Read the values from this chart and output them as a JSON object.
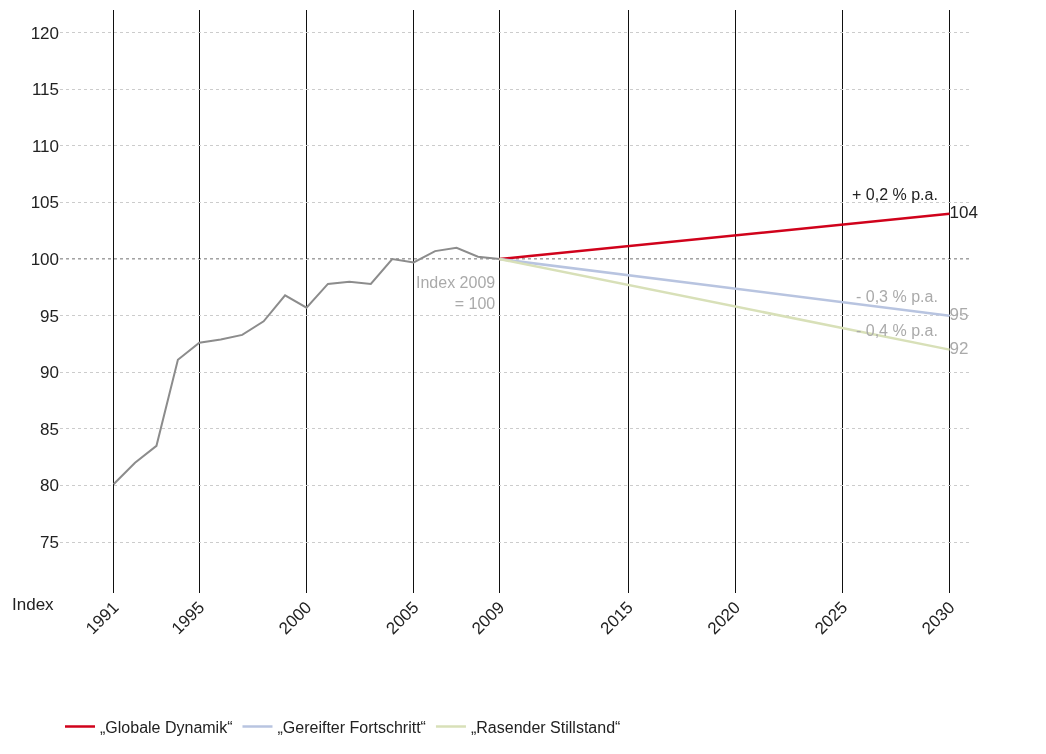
{
  "chart_data": {
    "type": "line",
    "ylabel": "Index",
    "xlim": [
      1988.5,
      2031
    ],
    "xticks": [
      1991,
      1995,
      2000,
      2005,
      2009,
      2015,
      2020,
      2025,
      2030
    ],
    "ylim": [
      70.5,
      122
    ],
    "yticks": [
      75,
      80,
      85,
      90,
      95,
      100,
      105,
      110,
      115,
      120
    ],
    "grid": true,
    "legend": "bottom",
    "marker": "none",
    "series": [
      {
        "color": "#8c8c8c",
        "x": [
          1991,
          1992,
          1993,
          1994,
          1995,
          1996,
          1997,
          1998,
          1999,
          2000,
          2001,
          2002,
          2003,
          2004,
          2005,
          2006,
          2007,
          2008,
          2009
        ],
        "values": [
          80.1,
          82.0,
          83.5,
          91.1,
          92.6,
          92.9,
          93.3,
          94.5,
          96.8,
          95.7,
          97.8,
          98.0,
          97.8,
          100.0,
          99.7,
          100.7,
          101.0,
          100.2,
          100
        ]
      },
      {
        "name": "„Globale Dynamik“",
        "color": "#d0021b",
        "x": [
          2009,
          2030
        ],
        "values": [
          100,
          104
        ],
        "value_labels": [
          null,
          "104"
        ]
      },
      {
        "name": "„Gereifter Fortschritt“",
        "color": "#b8c4e0",
        "x": [
          2009,
          2030
        ],
        "values": [
          100,
          95
        ],
        "value_labels": [
          null,
          "95"
        ]
      },
      {
        "name": "„Rasender Stillstand“",
        "color": "#d8e0b8",
        "x": [
          2009,
          2030
        ],
        "values": [
          100,
          92
        ],
        "value_labels": [
          null,
          "92"
        ]
      }
    ],
    "ref_lines": [
      {
        "axis": "y",
        "value": 100,
        "color": "#333333",
        "line_style": "dotted"
      }
    ],
    "annotations": [
      "+ 0,2 % p.a.",
      "- 0,3 % p.a.",
      "- 0,4 % p.a.",
      "Index 2009\n= 100"
    ]
  }
}
